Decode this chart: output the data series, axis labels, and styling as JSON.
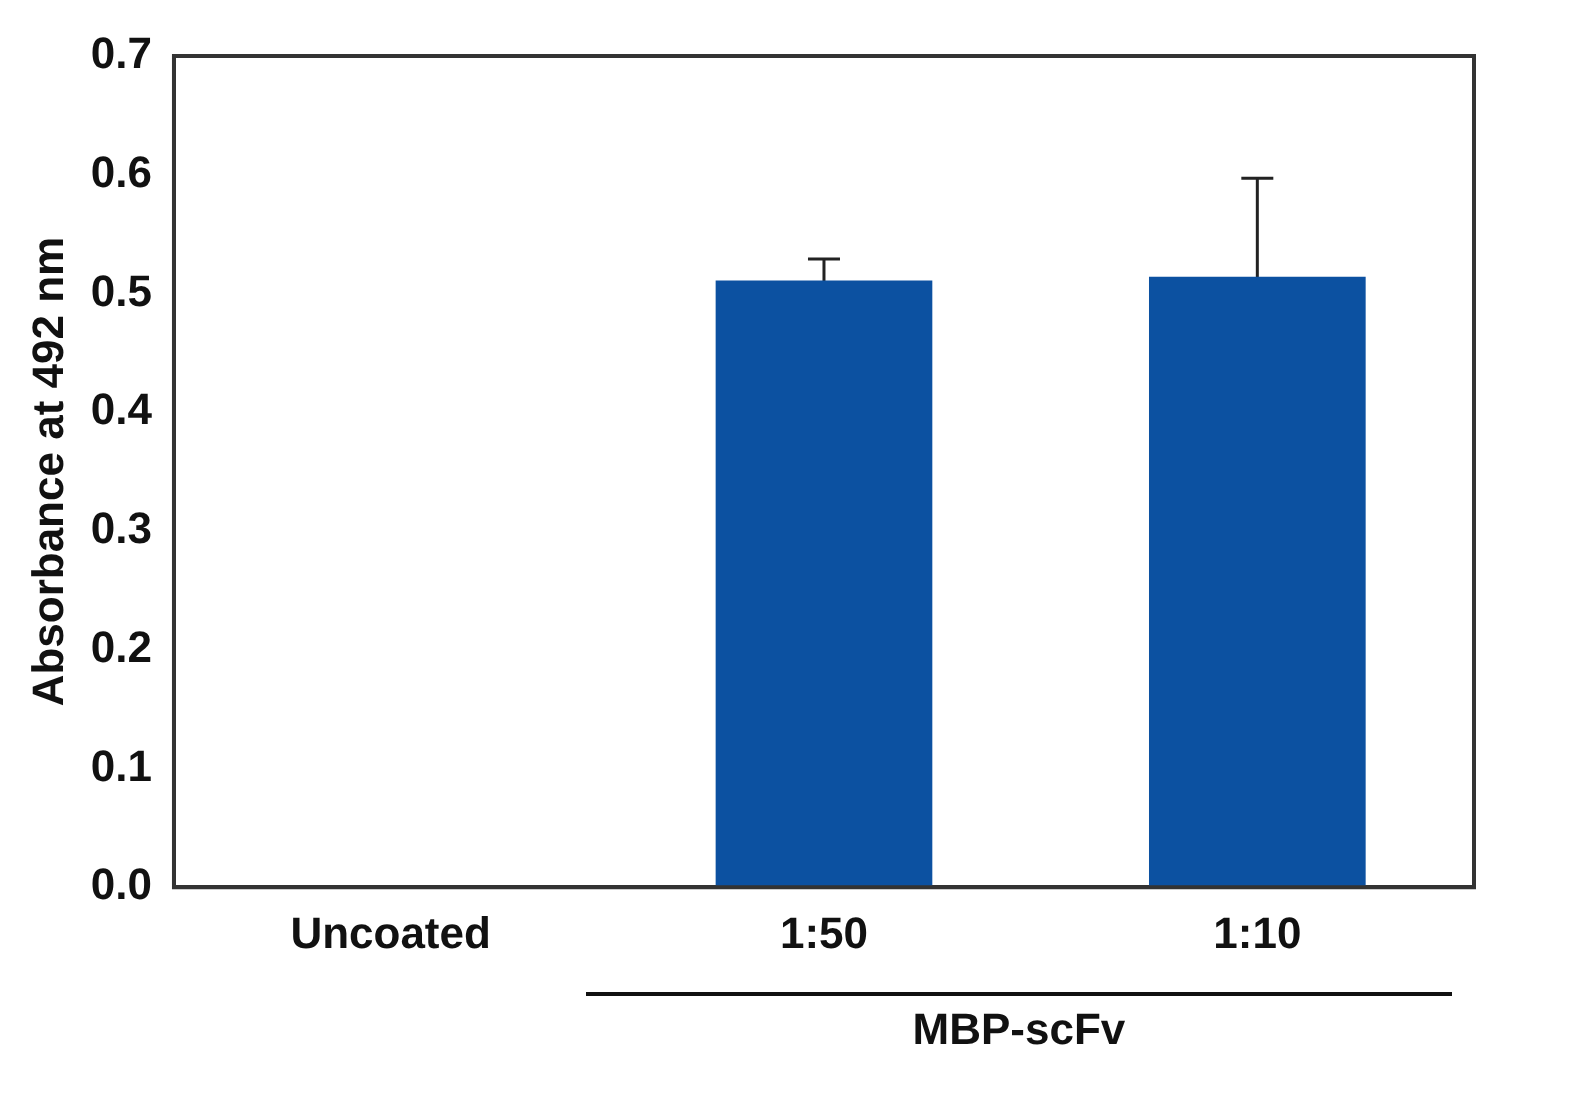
{
  "chart_data": {
    "type": "bar",
    "ylabel": "Absorbance at 492 nm",
    "categories": [
      "Uncoated",
      "1:50",
      "1:10"
    ],
    "values": [
      0,
      0.511,
      0.514
    ],
    "errors": [
      null,
      0.018,
      0.083
    ],
    "color": "#0c51a1",
    "ylim": [
      0,
      0.7
    ],
    "yticks": [
      {
        "value": 0,
        "label": "0.0"
      },
      {
        "value": 0.1,
        "label": "0.1"
      },
      {
        "value": 0.2,
        "label": "0.2"
      },
      {
        "value": 0.3,
        "label": "0.3"
      },
      {
        "value": 0.4,
        "label": "0.4"
      },
      {
        "value": 0.5,
        "label": "0.5"
      },
      {
        "value": 0.6,
        "label": "0.6"
      },
      {
        "value": 0.7,
        "label": "0.7"
      }
    ],
    "grid": false,
    "legend": false,
    "annotations": [
      "MBP-scFv"
    ]
  }
}
